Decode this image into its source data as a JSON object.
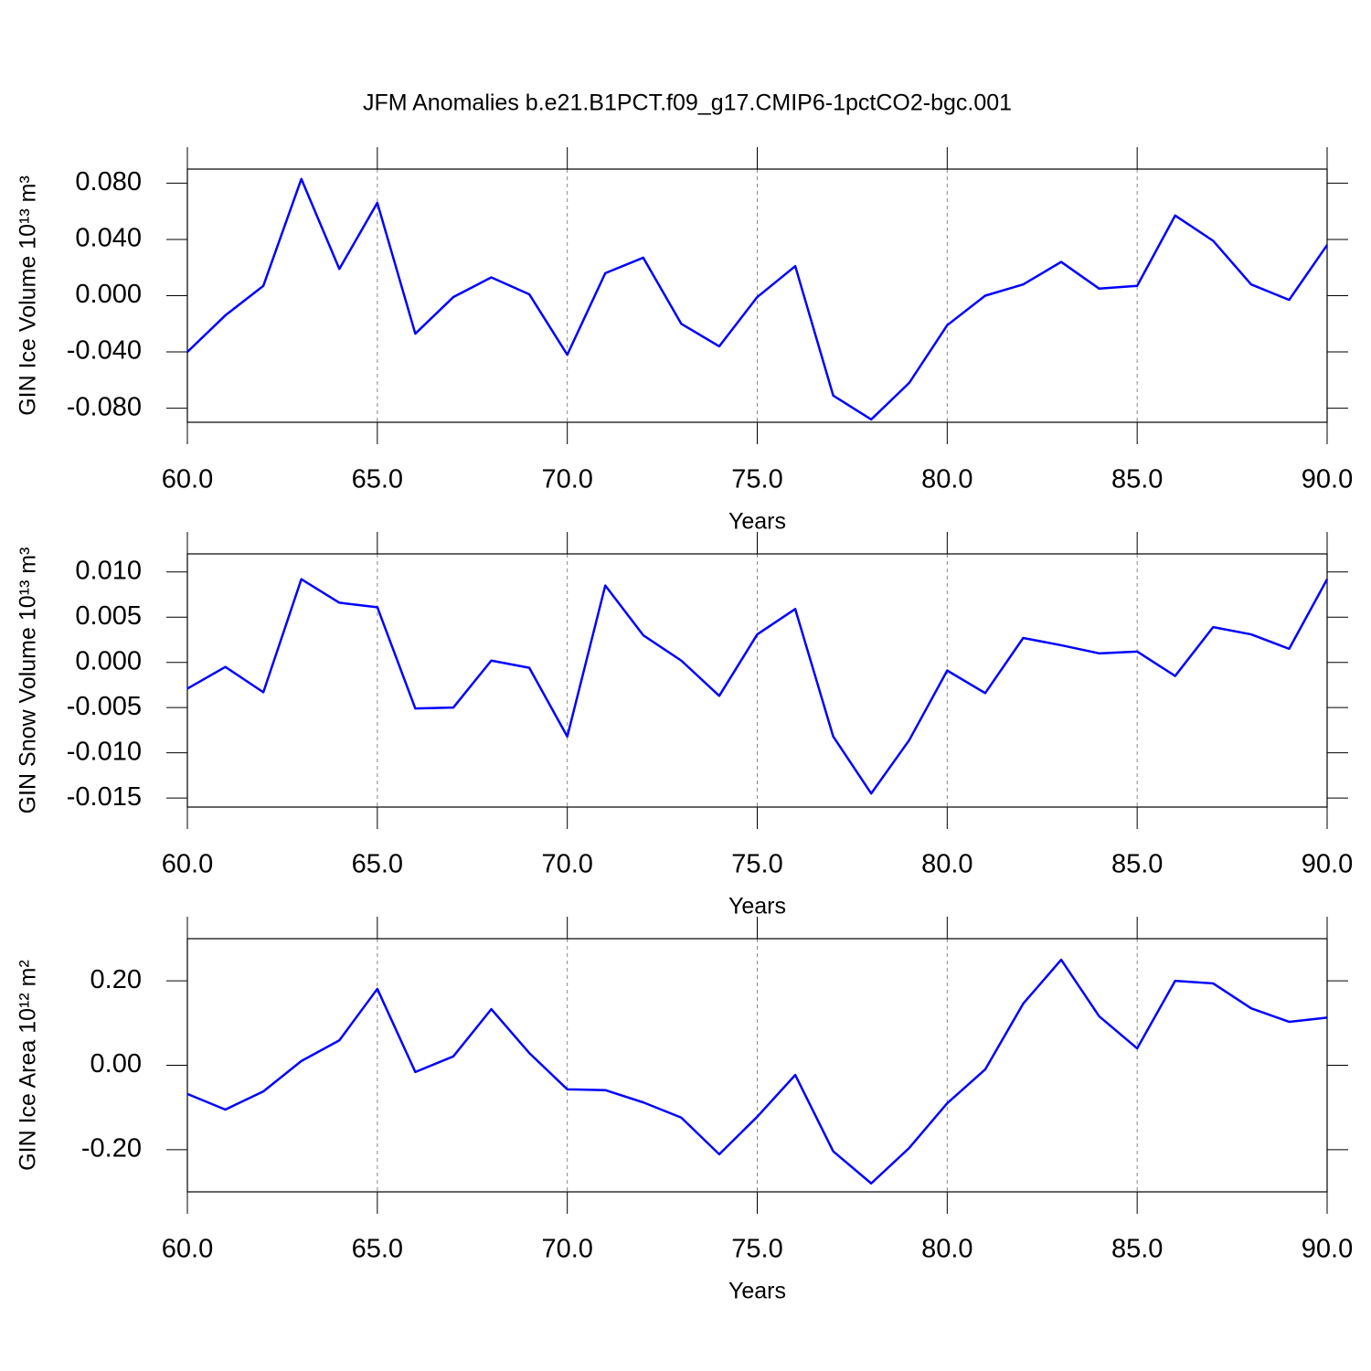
{
  "chart_data": [
    {
      "type": "line",
      "title": "JFM Anomalies b.e21.B1PCT.f09_g17.CMIP6-1pctCO2-bgc.001",
      "ylabel": "GIN Ice Volume 10¹³ m³",
      "xlabel": "Years",
      "x": [
        60,
        61,
        62,
        63,
        64,
        65,
        66,
        67,
        68,
        69,
        70,
        71,
        72,
        73,
        74,
        75,
        76,
        77,
        78,
        79,
        80,
        81,
        82,
        83,
        84,
        85,
        86,
        87,
        88,
        89,
        90
      ],
      "values": [
        -0.04,
        -0.014,
        0.007,
        0.083,
        0.019,
        0.066,
        -0.027,
        -0.001,
        0.013,
        0.001,
        -0.042,
        0.016,
        0.027,
        -0.02,
        -0.036,
        -0.001,
        0.021,
        -0.071,
        -0.088,
        -0.062,
        -0.021,
        0.0,
        0.008,
        0.024,
        0.005,
        0.007,
        0.057,
        0.039,
        0.008,
        -0.003,
        0.036
      ],
      "color": "#0000ff",
      "xlim": [
        60,
        90
      ],
      "ylim": [
        -0.09,
        0.09
      ],
      "xticks": [
        {
          "value": 60,
          "label": "60.0"
        },
        {
          "value": 65,
          "label": "65.0"
        },
        {
          "value": 70,
          "label": "70.0"
        },
        {
          "value": 75,
          "label": "75.0"
        },
        {
          "value": 80,
          "label": "80.0"
        },
        {
          "value": 85,
          "label": "85.0"
        },
        {
          "value": 90,
          "label": "90.0"
        }
      ],
      "yticks": [
        {
          "value": -0.08,
          "label": "-0.080"
        },
        {
          "value": -0.04,
          "label": "-0.040"
        },
        {
          "value": 0,
          "label": "0.000"
        },
        {
          "value": 0.04,
          "label": "0.040"
        },
        {
          "value": 0.08,
          "label": "0.080"
        }
      ],
      "xgrid": true
    },
    {
      "type": "line",
      "ylabel": "GIN Snow Volume 10¹³ m³",
      "xlabel": "Years",
      "x": [
        60,
        61,
        62,
        63,
        64,
        65,
        66,
        67,
        68,
        69,
        70,
        71,
        72,
        73,
        74,
        75,
        76,
        77,
        78,
        79,
        80,
        81,
        82,
        83,
        84,
        85,
        86,
        87,
        88,
        89,
        90
      ],
      "values": [
        -0.0029,
        -0.0005,
        -0.0033,
        0.0092,
        0.0066,
        0.0061,
        -0.0051,
        -0.005,
        0.0002,
        -0.0006,
        -0.0082,
        0.0085,
        0.003,
        0.0002,
        -0.0037,
        0.0031,
        0.0059,
        -0.0082,
        -0.0145,
        -0.0086,
        -0.0009,
        -0.0034,
        0.0027,
        0.0019,
        0.001,
        0.0012,
        -0.0015,
        0.0039,
        0.0031,
        0.0015,
        0.0092
      ],
      "color": "#0000ff",
      "xlim": [
        60,
        90
      ],
      "ylim": [
        -0.016,
        0.012
      ],
      "xticks": [
        {
          "value": 60,
          "label": "60.0"
        },
        {
          "value": 65,
          "label": "65.0"
        },
        {
          "value": 70,
          "label": "70.0"
        },
        {
          "value": 75,
          "label": "75.0"
        },
        {
          "value": 80,
          "label": "80.0"
        },
        {
          "value": 85,
          "label": "85.0"
        },
        {
          "value": 90,
          "label": "90.0"
        }
      ],
      "yticks": [
        {
          "value": -0.015,
          "label": "-0.015"
        },
        {
          "value": -0.01,
          "label": "-0.010"
        },
        {
          "value": -0.005,
          "label": "-0.005"
        },
        {
          "value": 0,
          "label": "0.000"
        },
        {
          "value": 0.005,
          "label": "0.005"
        },
        {
          "value": 0.01,
          "label": "0.010"
        }
      ],
      "xgrid": true
    },
    {
      "type": "line",
      "ylabel": "GIN Ice Area 10¹² m²",
      "xlabel": "Years",
      "x": [
        60,
        61,
        62,
        63,
        64,
        65,
        66,
        67,
        68,
        69,
        70,
        71,
        72,
        73,
        74,
        75,
        76,
        77,
        78,
        79,
        80,
        81,
        82,
        83,
        84,
        85,
        86,
        87,
        88,
        89,
        90
      ],
      "values": [
        -0.068,
        -0.105,
        -0.062,
        0.01,
        0.059,
        0.181,
        -0.016,
        0.021,
        0.133,
        0.029,
        -0.057,
        -0.059,
        -0.088,
        -0.124,
        -0.211,
        -0.122,
        -0.023,
        -0.204,
        -0.28,
        -0.196,
        -0.09,
        -0.01,
        0.146,
        0.25,
        0.116,
        0.04,
        0.2,
        0.194,
        0.135,
        0.103,
        0.113
      ],
      "color": "#0000ff",
      "xlim": [
        60,
        90
      ],
      "ylim": [
        -0.3,
        0.3
      ],
      "xticks": [
        {
          "value": 60,
          "label": "60.0"
        },
        {
          "value": 65,
          "label": "65.0"
        },
        {
          "value": 70,
          "label": "70.0"
        },
        {
          "value": 75,
          "label": "75.0"
        },
        {
          "value": 80,
          "label": "80.0"
        },
        {
          "value": 85,
          "label": "85.0"
        },
        {
          "value": 90,
          "label": "90.0"
        }
      ],
      "yticks": [
        {
          "value": -0.2,
          "label": "-0.20"
        },
        {
          "value": 0,
          "label": "0.00"
        },
        {
          "value": 0.2,
          "label": "0.20"
        }
      ],
      "xgrid": true
    }
  ]
}
